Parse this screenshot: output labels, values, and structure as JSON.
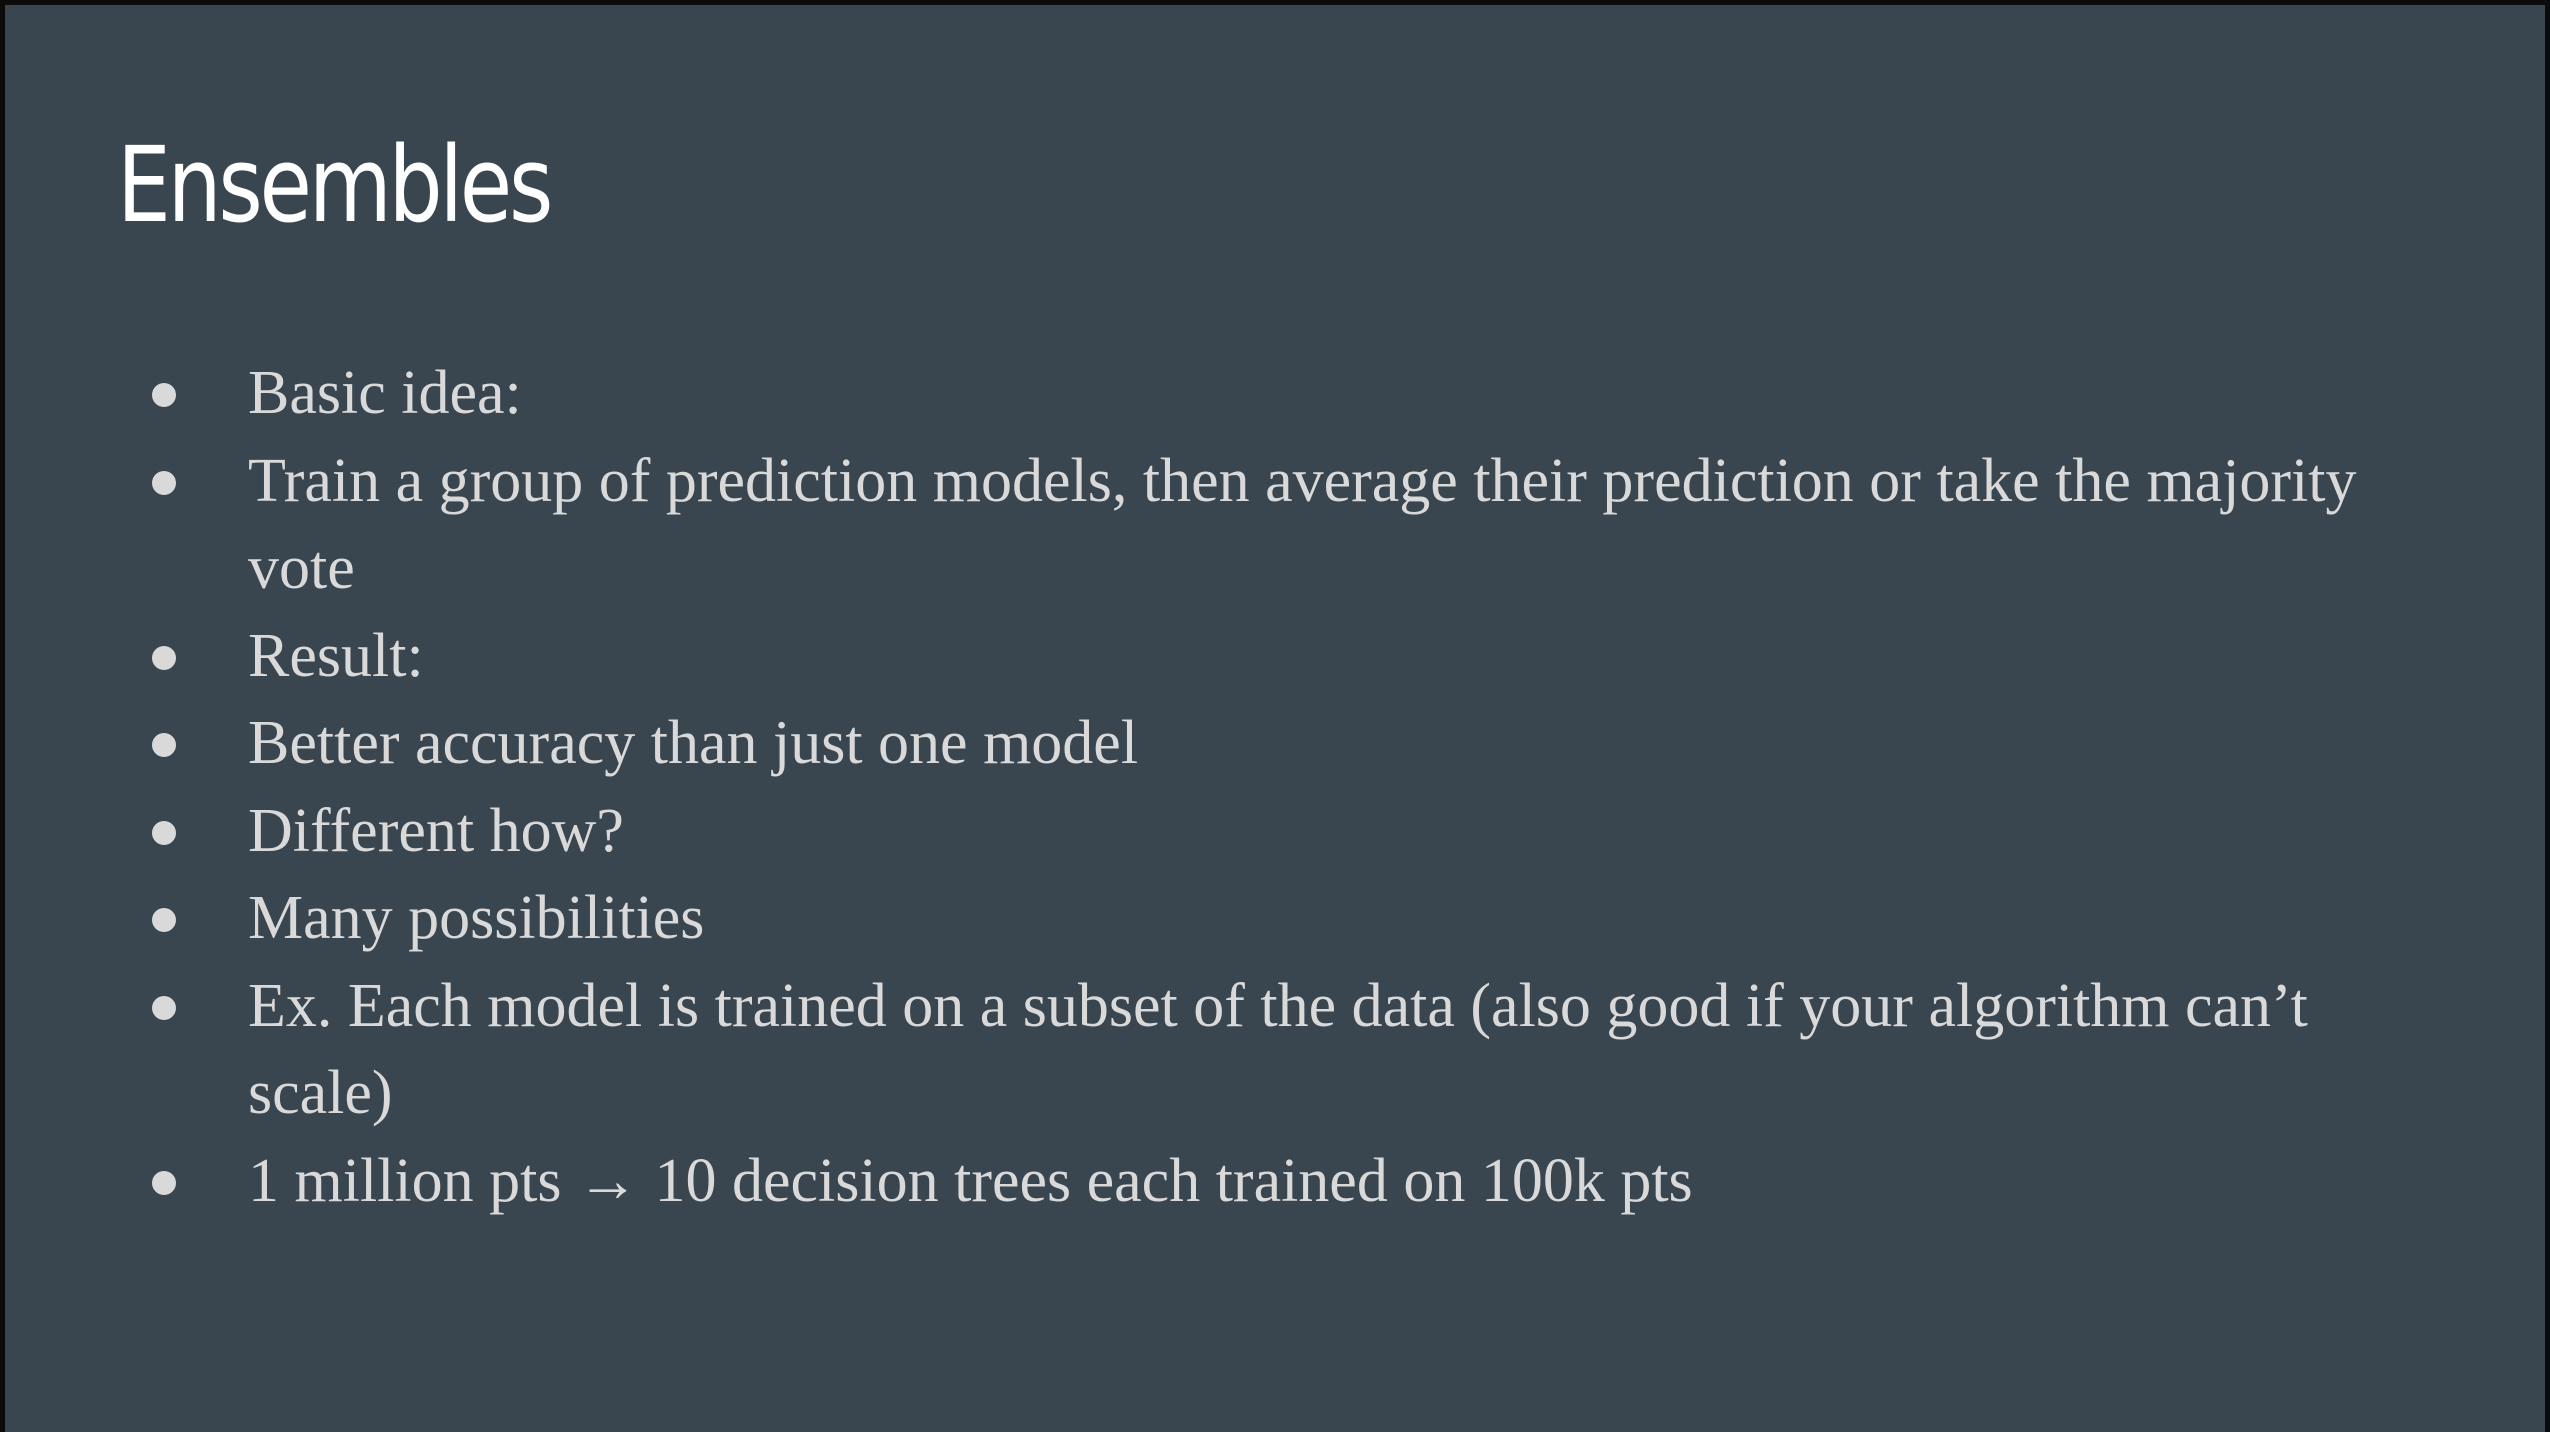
{
  "slide": {
    "title": "Ensembles",
    "bullets": [
      "Basic idea:",
      "Train a group of prediction models, then average their prediction or take the majority vote",
      "Result:",
      "Better accuracy than just one model",
      "Different how?",
      "Many possibilities",
      "Ex. Each model is trained on a subset of the data (also good if your algorithm can’t scale)",
      "1 million pts → 10 decision trees each trained on 100k pts"
    ]
  },
  "colors": {
    "background": "#39464f",
    "title": "#ffffff",
    "body_text": "#d9d9d9",
    "frame": "#0b0b0b"
  },
  "icons": {
    "bullet": "filled-circle"
  }
}
